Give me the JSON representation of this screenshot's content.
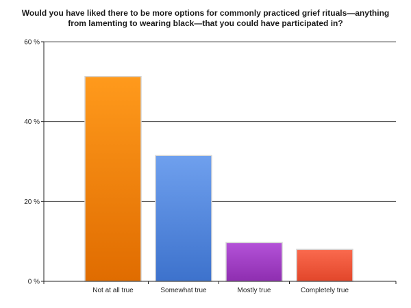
{
  "chart_data": {
    "type": "bar",
    "title_lines": [
      "Would you have liked there to be more options for commonly practiced grief rituals—anything",
      "from lamenting to wearing black—that you could have participated in?"
    ],
    "categories": [
      "Not at all true",
      "Somewhat true",
      "Mostly true",
      "Completely true"
    ],
    "values": [
      51.3,
      31.5,
      9.7,
      8.0
    ],
    "ylim": [
      0,
      60
    ],
    "yticks": [
      0,
      20,
      40,
      60
    ],
    "ytick_labels": [
      "0 %",
      "20 %",
      "40 %",
      "60 %"
    ],
    "grid": true,
    "colors": [
      {
        "top": "#ff9a1c",
        "bottom": "#e06c00"
      },
      {
        "top": "#6fa0ee",
        "bottom": "#3d72cc"
      },
      {
        "top": "#b452d8",
        "bottom": "#8e2eb0"
      },
      {
        "top": "#fa6a4e",
        "bottom": "#e2462a"
      }
    ]
  }
}
